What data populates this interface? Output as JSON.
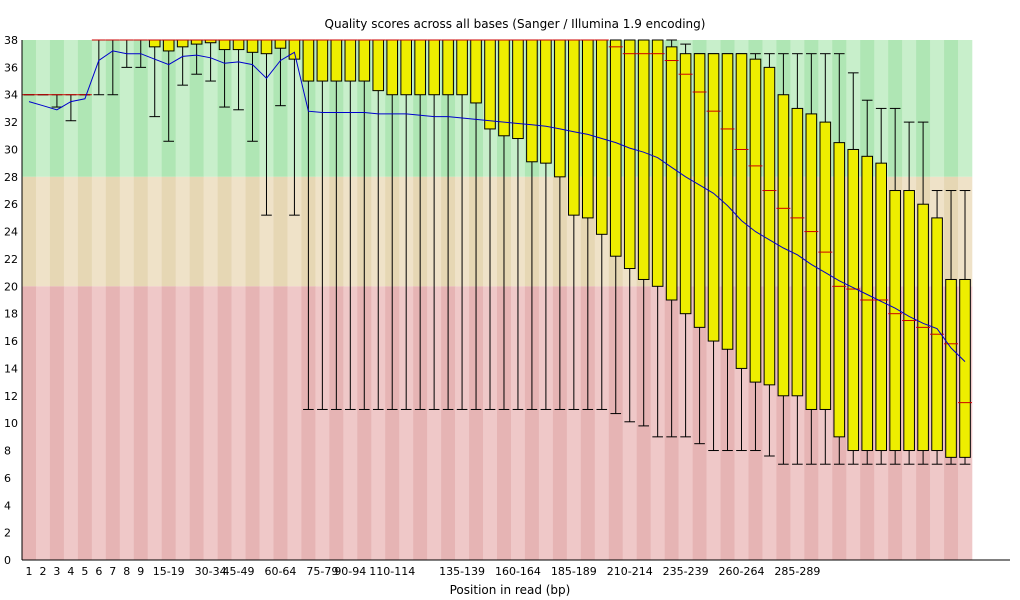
{
  "chart_data": {
    "type": "boxplot",
    "title": "Quality scores across all bases (Sanger / Illumina 1.9 encoding)",
    "xlabel": "Position in read (bp)",
    "ylabel": "",
    "ylim": [
      0,
      38
    ],
    "y_ticks": [
      "0",
      "2",
      "4",
      "6",
      "8",
      "10",
      "12",
      "14",
      "16",
      "18",
      "20",
      "22",
      "24",
      "26",
      "28",
      "30",
      "32",
      "34",
      "36",
      "38"
    ],
    "quality_bands": [
      {
        "name": "good",
        "from": 28,
        "to": 38,
        "colors": [
          "#afe6b4",
          "#c8efcb"
        ]
      },
      {
        "name": "reasonable",
        "from": 20,
        "to": 28,
        "colors": [
          "#e6d7b4",
          "#efe2c8"
        ]
      },
      {
        "name": "poor",
        "from": 0,
        "to": 20,
        "colors": [
          "#e6b4b4",
          "#efc8c8"
        ]
      }
    ],
    "colors": {
      "box": "#eeee00",
      "median": "#cc0000",
      "mean_line": "#0000cc",
      "whisker": "#000000"
    },
    "categories": [
      "1",
      "2",
      "3",
      "4",
      "5",
      "6",
      "7",
      "8",
      "9",
      "10-14",
      "15-19",
      "20-24",
      "25-29",
      "30-34",
      "35-39",
      "40-44",
      "45-49",
      "50-54",
      "55-59",
      "60-64",
      "65-69",
      "70-74",
      "75-79",
      "80-84",
      "85-89",
      "90-94",
      "95-99",
      "100-104",
      "105-109",
      "110-114",
      "115-119",
      "120-124",
      "125-129",
      "130-134",
      "135-139",
      "140-144",
      "145-149",
      "150-154",
      "155-159",
      "160-164",
      "165-169",
      "170-174",
      "175-179",
      "180-184",
      "185-189",
      "190-194",
      "195-199",
      "200-204",
      "205-209",
      "210-214",
      "215-219",
      "220-224",
      "225-229",
      "230-234",
      "235-239",
      "240-244",
      "245-249",
      "250-254",
      "255-259",
      "260-264",
      "265-269",
      "270-274",
      "275-279",
      "280-284",
      "285-289",
      "290-294",
      "295-299",
      "300-301"
    ],
    "x_tick_labels": [
      "1",
      "2",
      "3",
      "4",
      "5",
      "6",
      "7",
      "8",
      "9",
      "",
      "15-19",
      "",
      "",
      "30-34",
      "",
      "45-49",
      "",
      "",
      "60-64",
      "",
      "",
      "75-79",
      "",
      "90-94",
      "",
      "",
      "110-114",
      "",
      "",
      "",
      "",
      "135-139",
      "",
      "",
      "",
      "160-164",
      "",
      "",
      "",
      "185-189",
      "",
      "",
      "",
      "210-214",
      "",
      "",
      "",
      "235-239",
      "",
      "",
      "",
      "260-264",
      "",
      "",
      "",
      "285-289",
      "",
      "",
      "",
      "",
      "",
      "",
      "",
      "",
      "",
      "",
      "",
      ""
    ],
    "box_stats": {
      "q1": [
        34,
        34,
        34,
        34,
        34,
        38,
        38,
        38,
        38,
        37.5,
        37.2,
        37.5,
        37.7,
        37.8,
        37.3,
        37.3,
        37.1,
        37.0,
        37.4,
        36.6,
        35,
        35,
        35,
        35,
        35,
        34.3,
        34,
        34,
        34,
        34,
        34,
        34,
        33.4,
        31.5,
        31,
        30.8,
        29.1,
        29,
        28,
        25.2,
        25,
        23.8,
        22.2,
        21.3,
        20.5,
        20,
        19,
        18,
        17,
        16,
        15.4,
        14,
        13,
        12.8,
        12,
        12,
        11,
        11,
        9,
        8,
        8,
        8,
        8,
        8,
        8,
        8,
        7.5,
        7.5
      ],
      "median": [
        34,
        34,
        34,
        34,
        34,
        38,
        38,
        38,
        38,
        38,
        38,
        38,
        38,
        38,
        38,
        38,
        38,
        38,
        38,
        38,
        38,
        38,
        38,
        38,
        38,
        38,
        38,
        38,
        38,
        38,
        38,
        38,
        38,
        38,
        38,
        38,
        38,
        38,
        38,
        38,
        38,
        38,
        37.5,
        37,
        37,
        37,
        36.5,
        35.5,
        34.2,
        32.8,
        31.5,
        30,
        28.8,
        27,
        25.7,
        25,
        24,
        22.5,
        20,
        19.8,
        19,
        19,
        18,
        17.5,
        17,
        16.5,
        15.8,
        11.5
      ],
      "q3": [
        34,
        34,
        34,
        34,
        34,
        38,
        38,
        38,
        38,
        38,
        38,
        38,
        38,
        38,
        38,
        38,
        38,
        38,
        38,
        38,
        38,
        38,
        38,
        38,
        38,
        38,
        38,
        38,
        38,
        38,
        38,
        38,
        38,
        38,
        38,
        38,
        38,
        38,
        38,
        38,
        38,
        38,
        38,
        38,
        38,
        38,
        37.5,
        37,
        37,
        37,
        37,
        37,
        36.6,
        36,
        34,
        33,
        32.6,
        32,
        30.5,
        30,
        29.5,
        29,
        27,
        27,
        26,
        25,
        20.5,
        20.5
      ],
      "low": [
        34,
        34,
        33.1,
        32.1,
        34,
        34,
        34,
        36,
        36,
        32.4,
        30.6,
        34.7,
        35.5,
        35,
        33.1,
        32.9,
        30.6,
        25.2,
        33.2,
        25.2,
        11,
        11,
        11,
        11,
        11,
        11,
        11,
        11,
        11,
        11,
        11,
        11,
        11,
        11,
        11,
        11,
        11,
        11,
        11,
        11,
        11,
        11,
        10.7,
        10.1,
        9.8,
        9,
        9,
        9,
        8.5,
        8,
        8,
        8,
        8,
        7.6,
        7,
        7,
        7,
        7,
        7,
        7,
        7,
        7,
        7,
        7,
        7,
        7,
        7,
        7
      ],
      "high": [
        34,
        34,
        34,
        34,
        34,
        38,
        38,
        38,
        38,
        38,
        38,
        38,
        38,
        38,
        38,
        38,
        38,
        38,
        38,
        38,
        38,
        38,
        38,
        38,
        38,
        38,
        38,
        38,
        38,
        38,
        38,
        38,
        38,
        38,
        38,
        38,
        38,
        38,
        38,
        38,
        38,
        38,
        38,
        38,
        38,
        38,
        38,
        37.7,
        37,
        37,
        37,
        37,
        37,
        37,
        37,
        37,
        37,
        37,
        37,
        35.6,
        33.6,
        33,
        33,
        32,
        32,
        27,
        27,
        27
      ],
      "mean": [
        33.5,
        33.2,
        32.9,
        33.5,
        33.7,
        36.5,
        37.2,
        37.0,
        37.0,
        36.6,
        36.2,
        36.8,
        36.9,
        36.7,
        36.3,
        36.4,
        36.2,
        35.2,
        36.5,
        37.1,
        32.8,
        32.7,
        32.7,
        32.7,
        32.7,
        32.6,
        32.6,
        32.6,
        32.5,
        32.4,
        32.4,
        32.3,
        32.2,
        32.1,
        32.0,
        31.9,
        31.8,
        31.7,
        31.5,
        31.3,
        31.1,
        30.8,
        30.5,
        30.1,
        29.8,
        29.4,
        28.7,
        28.0,
        27.4,
        26.8,
        25.9,
        24.8,
        24.0,
        23.4,
        22.8,
        22.3,
        21.6,
        21.0,
        20.4,
        19.9,
        19.4,
        18.9,
        18.4,
        17.8,
        17.3,
        16.9,
        15.5,
        14.5
      ]
    }
  }
}
